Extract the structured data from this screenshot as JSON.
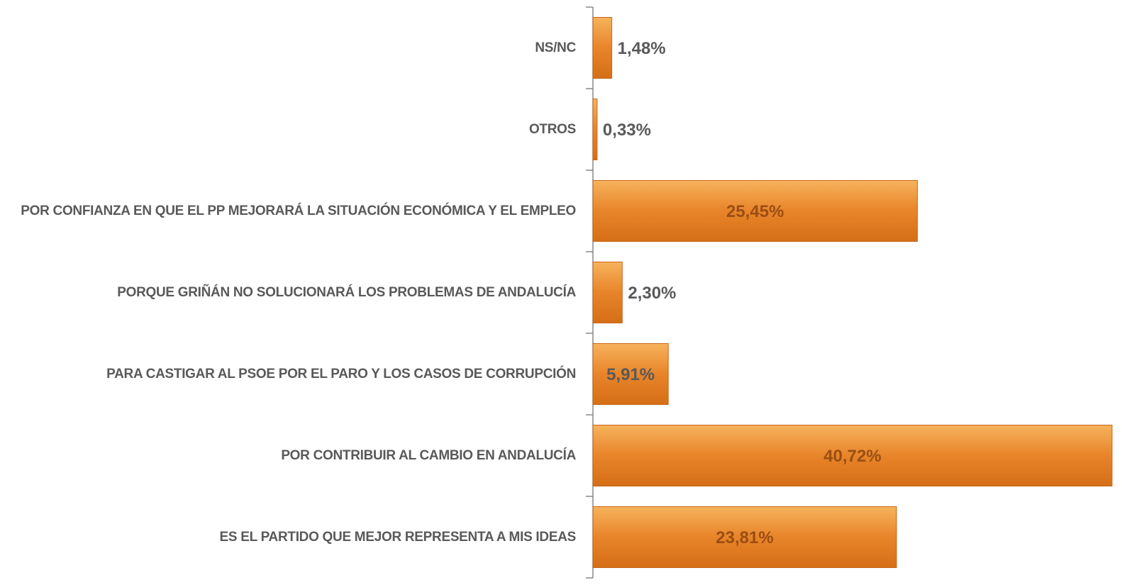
{
  "chart_data": {
    "type": "barh",
    "categories": [
      "NS/NC",
      "OTROS",
      "POR CONFIANZA EN QUE EL PP MEJORARÁ LA SITUACIÓN ECONÓMICA Y EL EMPLEO",
      "PORQUE GRIÑÁN NO SOLUCIONARÁ LOS PROBLEMAS DE ANDALUCÍA",
      "PARA CASTIGAR AL PSOE POR EL PARO Y LOS CASOS DE CORRUPCIÓN",
      "POR CONTRIBUIR AL CAMBIO EN ANDALUCÍA",
      "ES EL PARTIDO QUE MEJOR REPRESENTA A MIS IDEAS"
    ],
    "values": [
      1.48,
      0.33,
      25.45,
      2.3,
      5.91,
      40.72,
      23.81
    ],
    "value_labels": [
      "1,48%",
      "0,33%",
      "25,45%",
      "2,30%",
      "5,91%",
      "40,72%",
      "23,81%"
    ],
    "color": "#e8842a"
  }
}
